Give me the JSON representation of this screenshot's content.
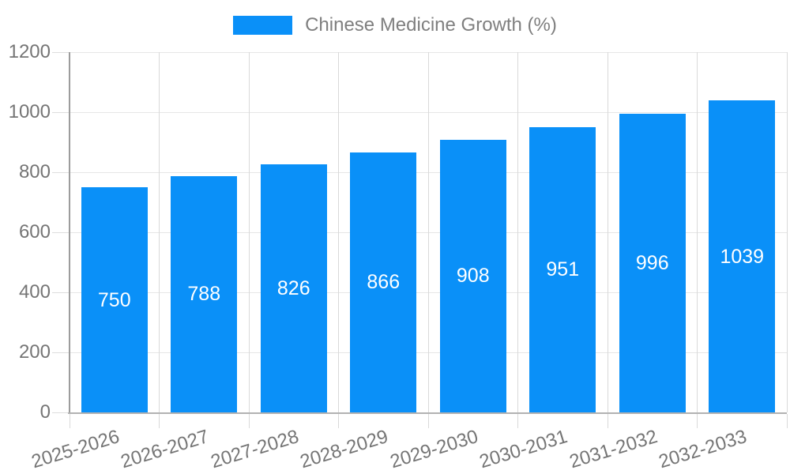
{
  "chart_data": {
    "type": "bar",
    "title": "",
    "legend_label": "Chinese Medicine Growth (%)",
    "legend_position": "top",
    "categories": [
      "2025-2026",
      "2026-2027",
      "2027-2028",
      "2028-2029",
      "2029-2030",
      "2030-2031",
      "2031-2032",
      "2032-2033"
    ],
    "values": [
      750,
      788,
      826,
      866,
      908,
      951,
      996,
      1039
    ],
    "xlabel": "",
    "ylabel": "",
    "ylim": [
      0,
      1200
    ],
    "yticks": [
      0,
      200,
      400,
      600,
      800,
      1000,
      1200
    ],
    "grid": true,
    "value_labels_inside_bars": true,
    "colors": {
      "bar": "#0a90f8",
      "value_label": "#ffffff",
      "legend_text": "#7f7f7f",
      "axis_text": "#757575",
      "gridline_h": "#e6e6e6",
      "gridline_v": "#d9d9d9",
      "tick": "#dedede",
      "y_axis_line": "#9c9c9c",
      "x_axis_line": "#b2b2b2",
      "background": "#ffffff"
    }
  }
}
